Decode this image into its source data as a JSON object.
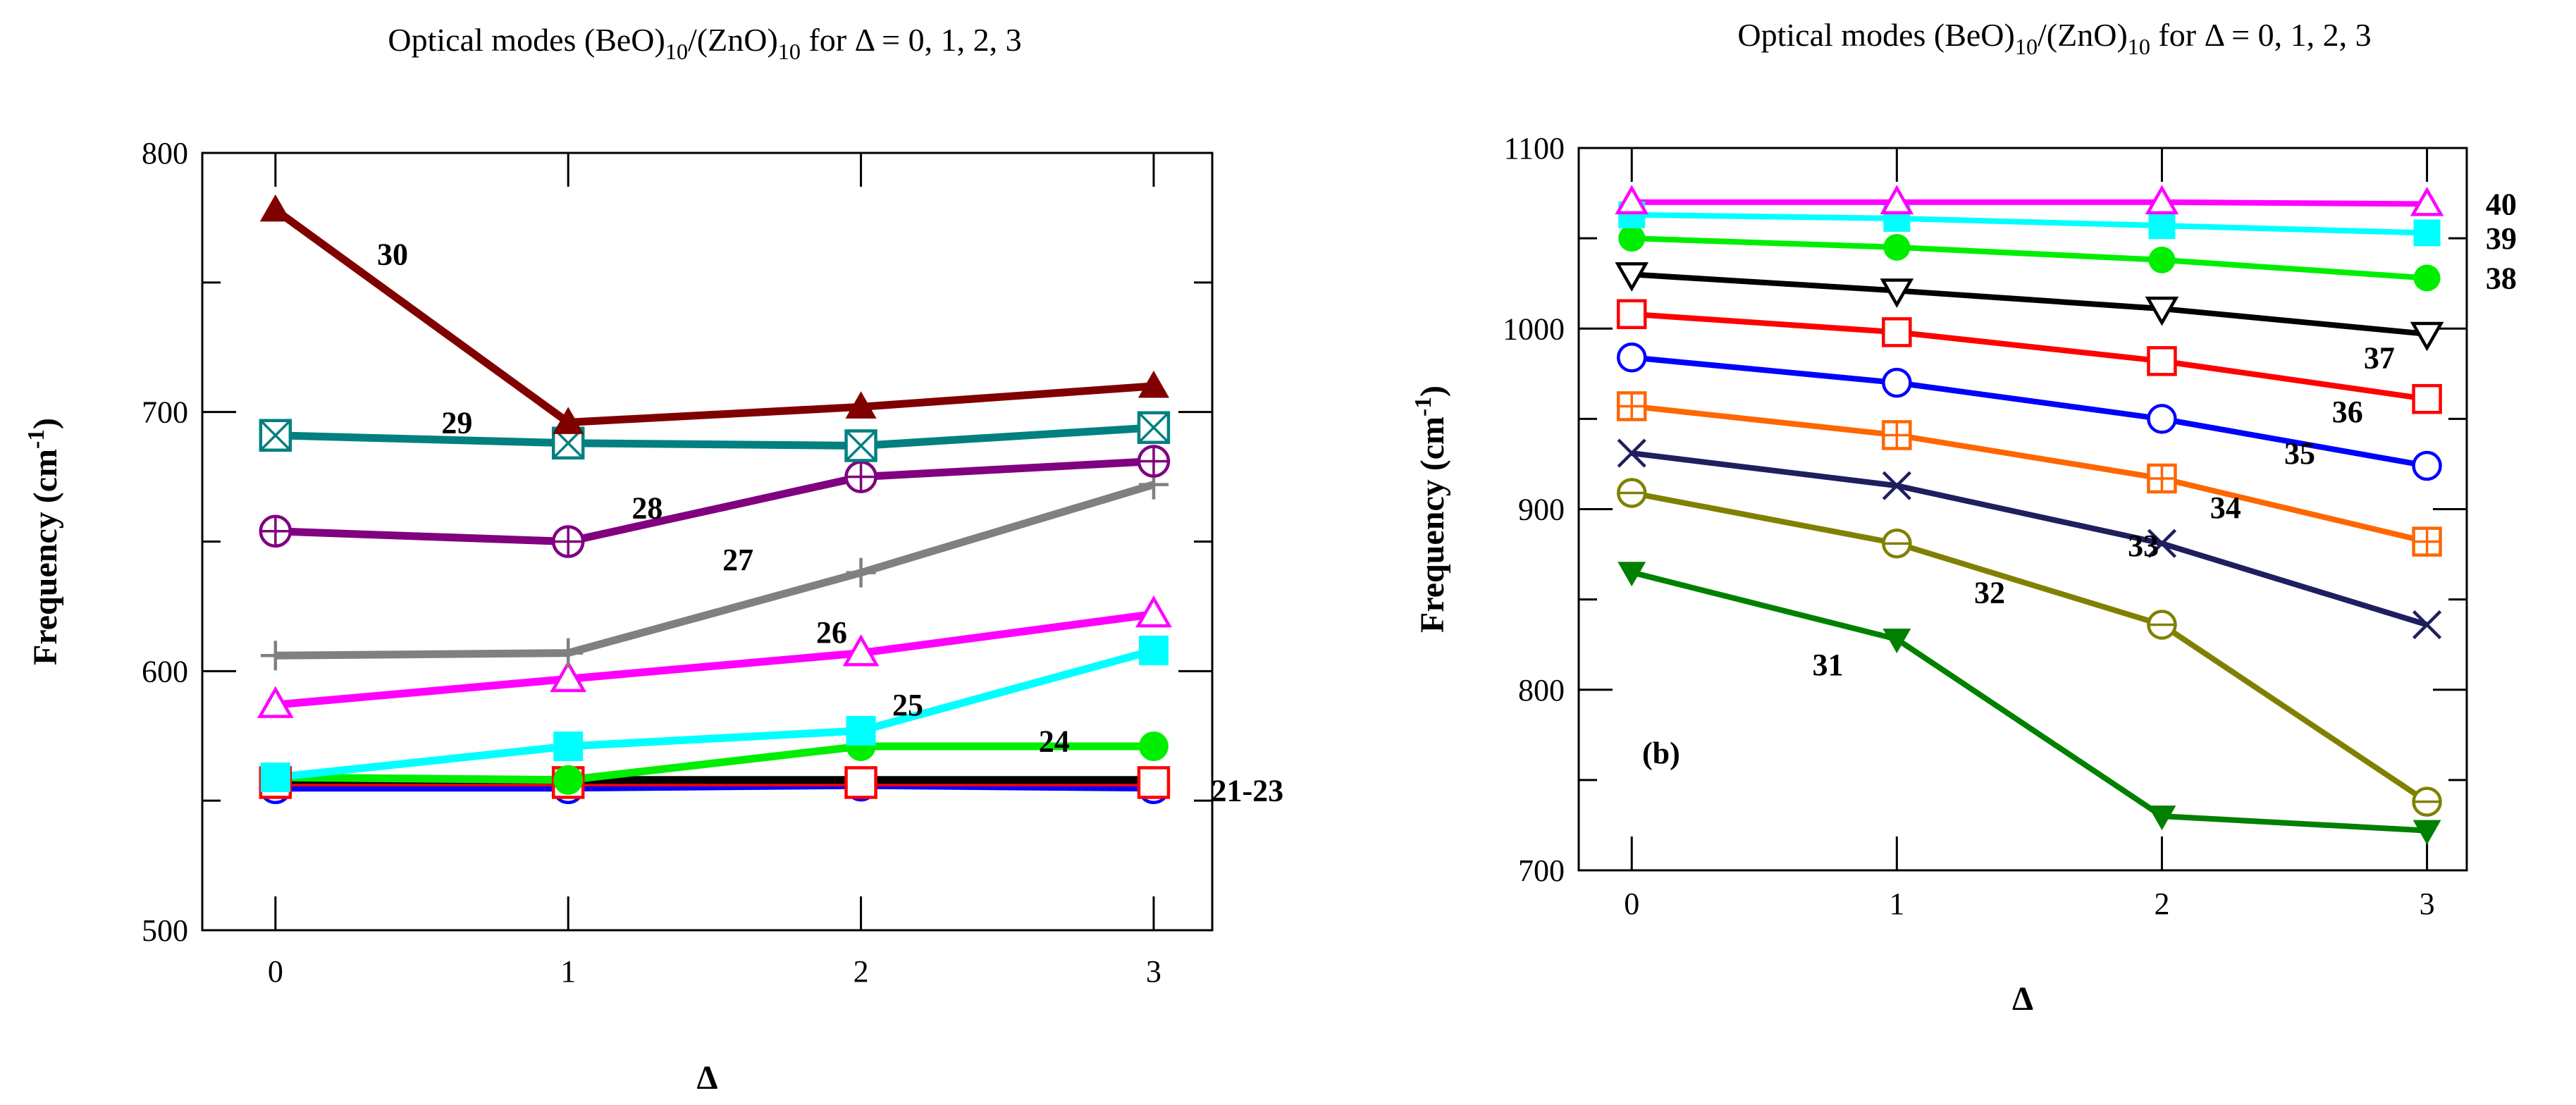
{
  "chart_data": [
    {
      "type": "line",
      "title_parts": [
        "Optical modes (BeO)",
        "10",
        "/(ZnO)",
        "10",
        " for Δ = 0, 1, 2, 3"
      ],
      "xlabel": "Δ",
      "ylabel_parts": [
        "Frequency (cm",
        "-1",
        ")"
      ],
      "x": [
        0,
        1,
        2,
        3
      ],
      "xlim": [
        -0.25,
        3.2
      ],
      "ylim": [
        500,
        800
      ],
      "xticks": [
        "0",
        "1",
        "2",
        "3"
      ],
      "yticks": [
        "500",
        "600",
        "700",
        "800"
      ],
      "panel_label": "",
      "series": [
        {
          "color": "#0000ff",
          "marker": "circle-open",
          "values": [
            555,
            555,
            556,
            555
          ]
        },
        {
          "color": "#ff0000",
          "marker": "square-open",
          "values": [
            557,
            557,
            557,
            557
          ]
        },
        {
          "color": "#000000",
          "marker": "none",
          "values": [
            558,
            558,
            558,
            558
          ]
        },
        {
          "color": "#00ee00",
          "marker": "circle-filled",
          "values": [
            559,
            558,
            571,
            571
          ]
        },
        {
          "color": "#00ffff",
          "marker": "square-filled",
          "values": [
            559,
            571,
            577,
            608
          ]
        },
        {
          "color": "#ff00ff",
          "marker": "triangle-open",
          "values": [
            587,
            597,
            607,
            622
          ]
        },
        {
          "color": "#808080",
          "marker": "plus",
          "values": [
            606,
            607,
            638,
            672
          ]
        },
        {
          "color": "#800080",
          "marker": "circle-plus",
          "values": [
            654,
            650,
            675,
            681
          ]
        },
        {
          "color": "#008080",
          "marker": "square-x",
          "values": [
            691,
            688,
            687,
            694
          ]
        },
        {
          "color": "#800000",
          "marker": "triangle-filled",
          "values": [
            778,
            696,
            702,
            710
          ]
        }
      ],
      "annotations": [
        {
          "text": "30",
          "x": 0.4,
          "y": 761
        },
        {
          "text": "29",
          "x": 0.62,
          "y": 696
        },
        {
          "text": "28",
          "x": 1.27,
          "y": 663
        },
        {
          "text": "27",
          "x": 1.58,
          "y": 643
        },
        {
          "text": "26",
          "x": 1.9,
          "y": 615
        },
        {
          "text": "25",
          "x": 2.16,
          "y": 587
        },
        {
          "text": "24",
          "x": 2.66,
          "y": 573
        },
        {
          "text": "21-23",
          "x": 3.32,
          "y": 554
        }
      ]
    },
    {
      "type": "line",
      "title_parts": [
        "Optical modes (BeO)",
        "10",
        "/(ZnO)",
        "10",
        " for Δ = 0, 1, 2, 3"
      ],
      "xlabel": "Δ",
      "ylabel_parts": [
        "Frequency (cm",
        "-1",
        ")"
      ],
      "x": [
        0,
        1,
        2,
        3
      ],
      "xlim": [
        -0.2,
        3.15
      ],
      "ylim": [
        700,
        1100
      ],
      "xticks": [
        "0",
        "1",
        "2",
        "3"
      ],
      "yticks": [
        "700",
        "800",
        "900",
        "1000",
        "1100"
      ],
      "panel_label": "(b)",
      "series": [
        {
          "color": "#008000",
          "marker": "triangle-down-filled",
          "values": [
            865,
            828,
            730,
            722
          ]
        },
        {
          "color": "#808000",
          "marker": "circle-minus",
          "values": [
            909,
            881,
            836,
            738
          ]
        },
        {
          "color": "#1f1f5f",
          "marker": "x",
          "values": [
            931,
            913,
            881,
            836
          ]
        },
        {
          "color": "#ff6600",
          "marker": "square-plus",
          "values": [
            957,
            941,
            917,
            882
          ]
        },
        {
          "color": "#0000ff",
          "marker": "circle-open",
          "values": [
            984,
            970,
            950,
            924
          ]
        },
        {
          "color": "#ff0000",
          "marker": "square-open",
          "values": [
            1008,
            998,
            982,
            961
          ]
        },
        {
          "color": "#000000",
          "marker": "triangle-down-open",
          "values": [
            1030,
            1021,
            1011,
            997
          ]
        },
        {
          "color": "#00ee00",
          "marker": "circle-filled",
          "values": [
            1050,
            1045,
            1038,
            1028
          ]
        },
        {
          "color": "#00ffff",
          "marker": "square-filled",
          "values": [
            1063,
            1061,
            1057,
            1053
          ]
        },
        {
          "color": "#ff00ff",
          "marker": "triangle-open",
          "values": [
            1070,
            1070,
            1070,
            1069
          ]
        }
      ],
      "annotations": [
        {
          "text": "40",
          "x": 3.28,
          "y": 1069
        },
        {
          "text": "39",
          "x": 3.28,
          "y": 1050
        },
        {
          "text": "38",
          "x": 3.28,
          "y": 1028
        },
        {
          "text": "37",
          "x": 2.82,
          "y": 984
        },
        {
          "text": "36",
          "x": 2.7,
          "y": 954
        },
        {
          "text": "35",
          "x": 2.52,
          "y": 931
        },
        {
          "text": "34",
          "x": 2.24,
          "y": 901
        },
        {
          "text": "33",
          "x": 1.93,
          "y": 880
        },
        {
          "text": "32",
          "x": 1.35,
          "y": 854
        },
        {
          "text": "31",
          "x": 0.74,
          "y": 814
        }
      ]
    }
  ]
}
